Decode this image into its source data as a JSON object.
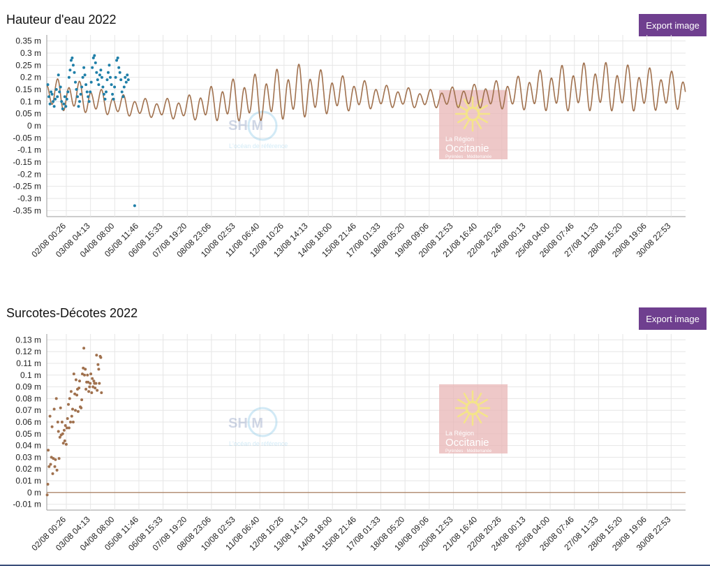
{
  "colors": {
    "observed": "#1f7fa8",
    "predicted": "#a0714e",
    "button": "#6f3f8f",
    "logo_box": "#e8b6b6",
    "logo_cross": "#f4e48a"
  },
  "logos": {
    "shom": {
      "letters": "SH  M",
      "tagline": "L'océan de référence"
    },
    "region": {
      "line1": "La Région",
      "line2": "Occitanie",
      "line3": "Pyrénées · Méditerranée"
    }
  },
  "export_label": "Export image",
  "x_ticks": [
    "02/08 00:26",
    "03/08 04:13",
    "04/08 08:00",
    "05/08 11:46",
    "06/08 15:33",
    "07/08 19:20",
    "08/08 23:06",
    "10/08 02:53",
    "11/08 06:40",
    "12/08 10:26",
    "13/08 14:13",
    "14/08 18:00",
    "15/08 21:46",
    "17/08 01:33",
    "18/08 05:20",
    "19/08 09:06",
    "20/08 12:53",
    "21/08 16:40",
    "22/08 20:26",
    "24/08 00:13",
    "25/08 04:00",
    "26/08 07:46",
    "27/08 11:33",
    "28/08 15:20",
    "29/08 19:06",
    "30/08 22:53"
  ],
  "chart_data": [
    {
      "type": "line",
      "title": "Hauteur d'eau 2022",
      "unit": "m",
      "yticks": [
        "0.35 m",
        "0.3 m",
        "0.25 m",
        "0.2 m",
        "0.15 m",
        "0.1 m",
        "0.05 m",
        "0 m",
        "-0.05 m",
        "-0.1 m",
        "-0.15 m",
        "-0.2 m",
        "-0.25 m",
        "-0.3 m",
        "-0.35 m"
      ],
      "ylim": [
        -0.35,
        0.35
      ],
      "xlim_days": [
        1.55,
        31.7
      ],
      "grid": true,
      "series": [
        {
          "style": "line",
          "tidal_model": {
            "semidiurnal_period_days": 0.5175,
            "diurnal_period_days": 1.035
          },
          "envelope": [
            {
              "day": 1.6,
              "mean": 0.13,
              "amp": 0.07
            },
            {
              "day": 3.0,
              "mean": 0.12,
              "amp": 0.07
            },
            {
              "day": 4.5,
              "mean": 0.09,
              "amp": 0.05
            },
            {
              "day": 6.5,
              "mean": 0.07,
              "amp": 0.04
            },
            {
              "day": 8.0,
              "mean": 0.07,
              "amp": 0.05
            },
            {
              "day": 10.0,
              "mean": 0.1,
              "amp": 0.09
            },
            {
              "day": 12.0,
              "mean": 0.12,
              "amp": 0.11
            },
            {
              "day": 13.5,
              "mean": 0.14,
              "amp": 0.12
            },
            {
              "day": 15.5,
              "mean": 0.13,
              "amp": 0.08
            },
            {
              "day": 17.5,
              "mean": 0.12,
              "amp": 0.05
            },
            {
              "day": 19.5,
              "mean": 0.11,
              "amp": 0.04
            },
            {
              "day": 21.5,
              "mean": 0.12,
              "amp": 0.05
            },
            {
              "day": 23.5,
              "mean": 0.13,
              "amp": 0.07
            },
            {
              "day": 25.5,
              "mean": 0.15,
              "amp": 0.1
            },
            {
              "day": 27.5,
              "mean": 0.16,
              "amp": 0.11
            },
            {
              "day": 29.5,
              "mean": 0.15,
              "amp": 0.1
            },
            {
              "day": 31.7,
              "mean": 0.14,
              "amp": 0.08
            }
          ]
        },
        {
          "style": "scatter",
          "points": [
            [
              1.6,
              0.17
            ],
            [
              1.65,
              0.12
            ],
            [
              1.7,
              0.09
            ],
            [
              1.75,
              0.14
            ],
            [
              1.8,
              0.13
            ],
            [
              1.85,
              0.1
            ],
            [
              1.9,
              0.08
            ],
            [
              1.95,
              0.11
            ],
            [
              2.0,
              0.15
            ],
            [
              2.05,
              0.12
            ],
            [
              2.1,
              0.21
            ],
            [
              2.15,
              0.14
            ],
            [
              2.2,
              0.16
            ],
            [
              2.25,
              0.1
            ],
            [
              2.3,
              0.07
            ],
            [
              2.35,
              0.09
            ],
            [
              2.4,
              0.12
            ],
            [
              2.45,
              0.08
            ],
            [
              2.5,
              0.11
            ],
            [
              2.55,
              0.14
            ],
            [
              2.6,
              0.2
            ],
            [
              2.65,
              0.23
            ],
            [
              2.7,
              0.27
            ],
            [
              2.75,
              0.28
            ],
            [
              2.8,
              0.25
            ],
            [
              2.85,
              0.22
            ],
            [
              2.9,
              0.18
            ],
            [
              2.95,
              0.15
            ],
            [
              3.0,
              0.12
            ],
            [
              3.05,
              0.08
            ],
            [
              3.1,
              0.1
            ],
            [
              3.15,
              0.13
            ],
            [
              3.2,
              0.16
            ],
            [
              3.25,
              0.2
            ],
            [
              3.3,
              0.24
            ],
            [
              3.35,
              0.21
            ],
            [
              3.4,
              0.17
            ],
            [
              3.45,
              0.14
            ],
            [
              3.5,
              0.12
            ],
            [
              3.55,
              0.1
            ],
            [
              3.6,
              0.14
            ],
            [
              3.65,
              0.18
            ],
            [
              3.7,
              0.24
            ],
            [
              3.75,
              0.28
            ],
            [
              3.8,
              0.29
            ],
            [
              3.85,
              0.26
            ],
            [
              3.9,
              0.22
            ],
            [
              3.95,
              0.19
            ],
            [
              4.0,
              0.17
            ],
            [
              4.05,
              0.21
            ],
            [
              4.1,
              0.23
            ],
            [
              4.15,
              0.2
            ],
            [
              4.2,
              0.16
            ],
            [
              4.25,
              0.13
            ],
            [
              4.3,
              0.11
            ],
            [
              4.35,
              0.14
            ],
            [
              4.4,
              0.19
            ],
            [
              4.45,
              0.22
            ],
            [
              4.5,
              0.25
            ],
            [
              4.55,
              0.2
            ],
            [
              4.6,
              0.17
            ],
            [
              4.65,
              0.13
            ],
            [
              4.7,
              0.11
            ],
            [
              4.75,
              0.16
            ],
            [
              4.8,
              0.2
            ],
            [
              4.85,
              0.27
            ],
            [
              4.9,
              0.28
            ],
            [
              4.95,
              0.24
            ],
            [
              5.0,
              0.22
            ],
            [
              5.05,
              0.19
            ],
            [
              5.1,
              0.14
            ],
            [
              5.15,
              0.12
            ],
            [
              5.2,
              0.16
            ],
            [
              5.25,
              0.2
            ],
            [
              5.3,
              0.18
            ],
            [
              5.35,
              0.21
            ],
            [
              5.4,
              0.19
            ],
            [
              5.7,
              -0.33
            ]
          ]
        }
      ]
    },
    {
      "type": "scatter",
      "title": "Surcotes-Décotes 2022",
      "unit": "m",
      "yticks": [
        "0.13 m",
        "0.12 m",
        "0.11 m",
        "0.1 m",
        "0.09 m",
        "0.08 m",
        "0.07 m",
        "0.06 m",
        "0.05 m",
        "0.04 m",
        "0.03 m",
        "0.02 m",
        "0.01 m",
        "0 m",
        "-0.01 m"
      ],
      "ylim": [
        -0.01,
        0.13
      ],
      "xlim_days": [
        1.55,
        31.7
      ],
      "grid": true,
      "zero_line": true,
      "series": [
        {
          "style": "scatter",
          "points": [
            [
              1.57,
              -0.002
            ],
            [
              1.6,
              0.007
            ],
            [
              1.62,
              0.036
            ],
            [
              1.66,
              0.022
            ],
            [
              1.7,
              0.065
            ],
            [
              1.73,
              0.024
            ],
            [
              1.77,
              0.03
            ],
            [
              1.8,
              0.056
            ],
            [
              1.83,
              0.016
            ],
            [
              1.86,
              0.029
            ],
            [
              1.9,
              0.071
            ],
            [
              1.93,
              0.022
            ],
            [
              1.96,
              0.028
            ],
            [
              2.0,
              0.08
            ],
            [
              2.03,
              0.019
            ],
            [
              2.07,
              0.06
            ],
            [
              2.1,
              0.052
            ],
            [
              2.13,
              0.029
            ],
            [
              2.17,
              0.047
            ],
            [
              2.2,
              0.072
            ],
            [
              2.23,
              0.049
            ],
            [
              2.27,
              0.06
            ],
            [
              2.3,
              0.05
            ],
            [
              2.33,
              0.042
            ],
            [
              2.37,
              0.053
            ],
            [
              2.4,
              0.044
            ],
            [
              2.43,
              0.057
            ],
            [
              2.47,
              0.041
            ],
            [
              2.5,
              0.055
            ],
            [
              2.53,
              0.063
            ],
            [
              2.57,
              0.075
            ],
            [
              2.6,
              0.055
            ],
            [
              2.63,
              0.08
            ],
            [
              2.67,
              0.06
            ],
            [
              2.7,
              0.086
            ],
            [
              2.73,
              0.065
            ],
            [
              2.77,
              0.071
            ],
            [
              2.8,
              0.06
            ],
            [
              2.83,
              0.101
            ],
            [
              2.87,
              0.084
            ],
            [
              2.9,
              0.07
            ],
            [
              2.93,
              0.096
            ],
            [
              2.97,
              0.083
            ],
            [
              3.0,
              0.088
            ],
            [
              3.03,
              0.069
            ],
            [
              3.07,
              0.089
            ],
            [
              3.1,
              0.095
            ],
            [
              3.13,
              0.073
            ],
            [
              3.17,
              0.072
            ],
            [
              3.2,
              0.079
            ],
            [
              3.23,
              0.101
            ],
            [
              3.27,
              0.106
            ],
            [
              3.3,
              0.123
            ],
            [
              3.33,
              0.1
            ],
            [
              3.37,
              0.105
            ],
            [
              3.4,
              0.088
            ],
            [
              3.43,
              0.094
            ],
            [
              3.47,
              0.1
            ],
            [
              3.5,
              0.094
            ],
            [
              3.53,
              0.086
            ],
            [
              3.57,
              0.09
            ],
            [
              3.6,
              0.093
            ],
            [
              3.63,
              0.101
            ],
            [
              3.67,
              0.085
            ],
            [
              3.7,
              0.097
            ],
            [
              3.73,
              0.09
            ],
            [
              3.77,
              0.095
            ],
            [
              3.8,
              0.093
            ],
            [
              3.83,
              0.089
            ],
            [
              3.87,
              0.093
            ],
            [
              3.9,
              0.117
            ],
            [
              3.93,
              0.087
            ],
            [
              3.97,
              0.109
            ],
            [
              4.0,
              0.105
            ],
            [
              4.03,
              0.093
            ],
            [
              4.07,
              0.116
            ],
            [
              4.1,
              0.115
            ],
            [
              4.13,
              0.085
            ]
          ]
        }
      ]
    }
  ]
}
